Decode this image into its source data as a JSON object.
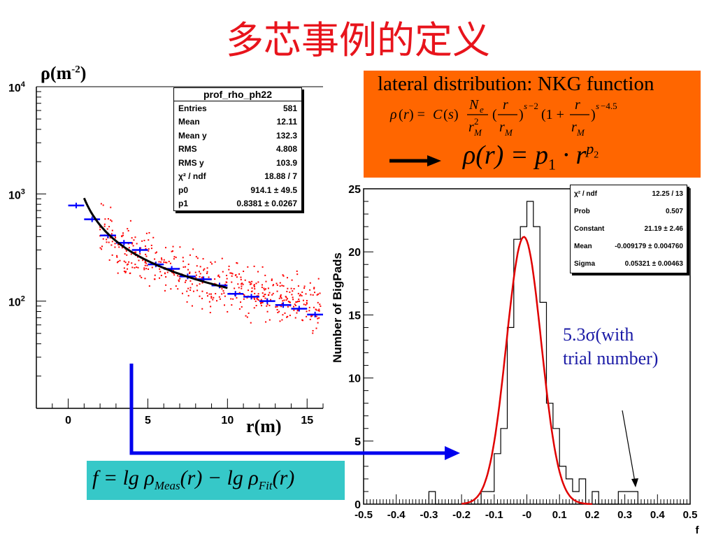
{
  "title": "多芯事例的定义",
  "left_ylabel": "ρ(m",
  "left_ylabel_sup": "-2",
  "left_ylabel_close": ")",
  "left_xlabel": "r(m)",
  "nkg": {
    "title": "lateral distribution: NKG function",
    "fit_lhs": "ρ(r) = p",
    "fit_sub": "1",
    "fit_rhs": " · r",
    "fit_sup": "p",
    "fit_sup_sub": "2"
  },
  "f_formula": {
    "text": "f = lg ρ",
    "sub1": "Meas",
    "mid": "(r) − lg ρ",
    "sub2": "Fit",
    "end": "(r)"
  },
  "annotation": {
    "line1": "5.3σ(with",
    "line2": "trial number)"
  },
  "statbox_left": {
    "name": "prof_rho_ph22",
    "rows": [
      {
        "label": "Entries",
        "value": "581"
      },
      {
        "label": "Mean",
        "value": "12.11"
      },
      {
        "label": "Mean y",
        "value": "132.3"
      },
      {
        "label": "RMS",
        "value": "4.808"
      },
      {
        "label": "RMS y",
        "value": "103.9"
      },
      {
        "label": "χ² / ndf",
        "value": "18.88 / 7"
      },
      {
        "label": "p0",
        "value": "914.1 ± 49.5"
      },
      {
        "label": "p1",
        "value": "0.8381 ± 0.0267"
      }
    ]
  },
  "statbox_right": {
    "rows": [
      {
        "label": "χ² / ndf",
        "value": "12.25 / 13"
      },
      {
        "label": "Prob",
        "value": "0.507"
      },
      {
        "label": "Constant",
        "value": "21.19 ± 2.46"
      },
      {
        "label": "Mean",
        "value": "-0.009179 ± 0.004760"
      },
      {
        "label": "Sigma",
        "value": "0.05321 ± 0.00463"
      }
    ]
  },
  "colors": {
    "title": "#e8141c",
    "nkg_box": "#ff6600",
    "f_box": "#36c8c8",
    "profile": "#0000ff",
    "scatter": "#ff0000",
    "fit_left": "#000000",
    "fit_right": "#e00000",
    "note": "#1a1aa6"
  },
  "chart_data": [
    {
      "type": "scatter",
      "title": "",
      "xlabel": "r(m)",
      "ylabel": "ρ(m-2)",
      "xlim": [
        -2,
        16
      ],
      "ylim": [
        10,
        10000
      ],
      "log_y": true,
      "x_ticks": [
        0,
        5,
        10,
        15
      ],
      "y_ticks": [
        "10^2",
        "10^3",
        "10^4"
      ],
      "profile": {
        "name": "prof_rho_ph22",
        "x": [
          0.5,
          1.5,
          2.5,
          3.5,
          4.5,
          5.5,
          6.5,
          7.5,
          8.5,
          9.5,
          10.5,
          11.5,
          12.5,
          13.5,
          14.5,
          15.5
        ],
        "y": [
          780,
          580,
          410,
          350,
          300,
          220,
          200,
          170,
          160,
          140,
          117,
          110,
          100,
          92,
          85,
          75
        ],
        "xerr": 0.5
      },
      "fit": {
        "function": "p0 * r^(-p1)",
        "p0": 914.1,
        "p1": 0.8381,
        "x_range": [
          1,
          10
        ]
      }
    },
    {
      "type": "bar",
      "title": "",
      "xlabel": "f",
      "ylabel": "Number of BigPads",
      "xlim": [
        -0.5,
        0.5
      ],
      "ylim": [
        0,
        25
      ],
      "x_ticks": [
        -0.5,
        -0.4,
        -0.3,
        -0.2,
        -0.1,
        0,
        0.1,
        0.2,
        0.3,
        0.4,
        0.5
      ],
      "x_tick_labels": [
        "-0.5",
        "-0.4",
        "-0.3",
        "-0.2",
        "-0.1",
        "-0",
        "0.1",
        "0.2",
        "0.3",
        "0.4",
        "0.5"
      ],
      "y_ticks": [
        0,
        5,
        10,
        15,
        20,
        25
      ],
      "histogram": {
        "bin_edges": [
          -0.3,
          -0.28,
          -0.26,
          -0.24,
          -0.22,
          -0.2,
          -0.18,
          -0.16,
          -0.14,
          -0.12,
          -0.1,
          -0.08,
          -0.06,
          -0.04,
          -0.02,
          0.0,
          0.02,
          0.04,
          0.06,
          0.08,
          0.1,
          0.12,
          0.14,
          0.16,
          0.18,
          0.2,
          0.22,
          0.24,
          0.26,
          0.28,
          0.3,
          0.32,
          0.34
        ],
        "counts": [
          1,
          0,
          0,
          0,
          0,
          0,
          0,
          0,
          1,
          1,
          4,
          6,
          14,
          21,
          22,
          24,
          22,
          16,
          8,
          6,
          3,
          2,
          1,
          2,
          0,
          1,
          0,
          0,
          0,
          1,
          1,
          1
        ]
      },
      "fit": {
        "function": "gaus",
        "constant": 21.19,
        "mean": -0.009179,
        "sigma": 0.05321
      }
    }
  ]
}
